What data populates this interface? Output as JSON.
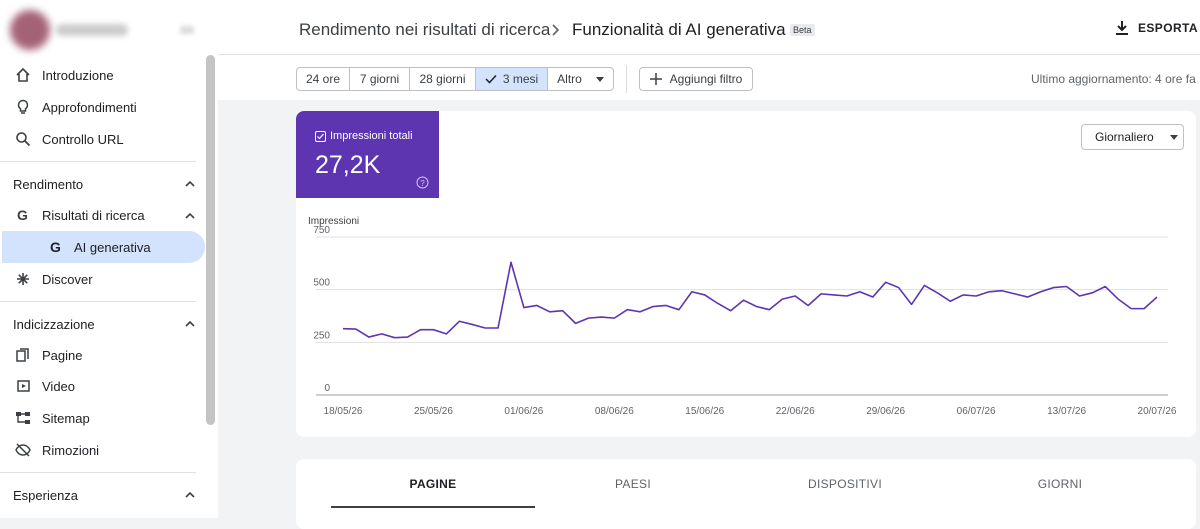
{
  "sidebar": {
    "items_top": [
      "Introduzione",
      "Approfondimenti",
      "Controllo URL"
    ],
    "sections": [
      {
        "title": "Rendimento",
        "items": [
          "Risultati di ricerca",
          "AI generativa",
          "Discover"
        ]
      },
      {
        "title": "Indicizzazione",
        "items": [
          "Pagine",
          "Video",
          "Sitemap",
          "Rimozioni"
        ]
      },
      {
        "title": "Esperienza",
        "items": []
      }
    ]
  },
  "header": {
    "breadcrumb": "Rendimento nei risultati di ricerca",
    "title": "Funzionalità di AI generativa",
    "badge": "Beta",
    "export": "ESPORTA"
  },
  "filters": {
    "ranges": [
      "24 ore",
      "7 giorni",
      "28 giorni",
      "3 mesi",
      "Altro"
    ],
    "add_filter": "Aggiungi filtro",
    "last_update": "Ultimo aggiornamento: 4 ore fa"
  },
  "metric": {
    "value": "27,2K"
  },
  "granularity": "Giornaliero",
  "tabs": [
    "PAGINE",
    "PAESI",
    "DISPOSITIVI",
    "GIORNI"
  ],
  "chart_data": {
    "type": "line",
    "y_label": "Impressioni",
    "x": [
      "18/05/26",
      "19/05/26",
      "20/05/26",
      "21/05/26",
      "22/05/26",
      "23/05/26",
      "24/05/26",
      "25/05/26",
      "26/05/26",
      "27/05/26",
      "28/05/26",
      "29/05/26",
      "30/05/26",
      "31/05/26",
      "01/06/26",
      "02/06/26",
      "03/06/26",
      "04/06/26",
      "05/06/26",
      "06/06/26",
      "07/06/26",
      "08/06/26",
      "09/06/26",
      "10/06/26",
      "11/06/26",
      "12/06/26",
      "13/06/26",
      "14/06/26",
      "15/06/26",
      "16/06/26",
      "17/06/26",
      "18/06/26",
      "19/06/26",
      "20/06/26",
      "21/06/26",
      "22/06/26",
      "23/06/26",
      "24/06/26",
      "25/06/26",
      "26/06/26",
      "27/06/26",
      "28/06/26",
      "29/06/26",
      "30/06/26",
      "01/07/26",
      "02/07/26",
      "03/07/26",
      "04/07/26",
      "05/07/26",
      "06/07/26",
      "07/07/26",
      "08/07/26",
      "09/07/26",
      "10/07/26",
      "11/07/26",
      "12/07/26",
      "13/07/26",
      "14/07/26",
      "15/07/26",
      "16/07/26",
      "17/07/26",
      "18/07/26",
      "19/07/26",
      "20/07/26"
    ],
    "xticks": [
      "18/05/26",
      "25/05/26",
      "01/06/26",
      "08/06/26",
      "15/06/26",
      "22/06/26",
      "29/06/26",
      "06/07/26",
      "13/07/26",
      "20/07/26"
    ],
    "series": [
      {
        "name": "Impressioni totali",
        "color": "#5e35b1",
        "values": [
          315,
          313,
          275,
          290,
          272,
          275,
          310,
          310,
          290,
          350,
          335,
          318,
          318,
          630,
          415,
          425,
          395,
          400,
          340,
          365,
          370,
          365,
          405,
          395,
          420,
          425,
          405,
          490,
          475,
          435,
          400,
          450,
          420,
          405,
          455,
          470,
          425,
          480,
          475,
          470,
          490,
          465,
          535,
          510,
          430,
          520,
          485,
          445,
          475,
          470,
          490,
          495,
          480,
          465,
          490,
          510,
          515,
          470,
          485,
          515,
          455,
          410,
          410,
          465
        ]
      }
    ],
    "ylim": [
      0,
      750
    ],
    "yticks": [
      0,
      250,
      500,
      750
    ],
    "grid": true
  }
}
